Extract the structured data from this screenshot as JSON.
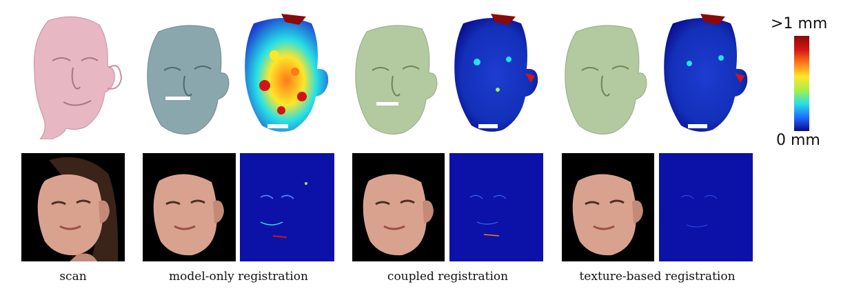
{
  "colorbar": {
    "max_label": ">1 mm",
    "min_label": "0 mm",
    "colors": [
      "#0a0a8c",
      "#1e6cff",
      "#26e0e6",
      "#a6f04a",
      "#ffe629",
      "#ff7a18",
      "#d41414",
      "#8a0a0a"
    ]
  },
  "columns": [
    {
      "caption": "scan",
      "mesh_color": "#e7b7c3",
      "mesh_stroke": "#c98ea0"
    },
    {
      "caption": "model-only registration",
      "mesh_color": "#8aa7ad",
      "mesh_stroke": "#6c8a91"
    },
    {
      "caption": "coupled registration",
      "mesh_color": "#b3c99f",
      "mesh_stroke": "#93ab80"
    },
    {
      "caption": "texture-based registration",
      "mesh_color": "#b3c99f",
      "mesh_stroke": "#93ab80"
    }
  ],
  "colors": {
    "error_bg": "#0c12a8",
    "photo_bg": "#000000",
    "skin": "#d9a28f",
    "hair": "#3a2318"
  }
}
